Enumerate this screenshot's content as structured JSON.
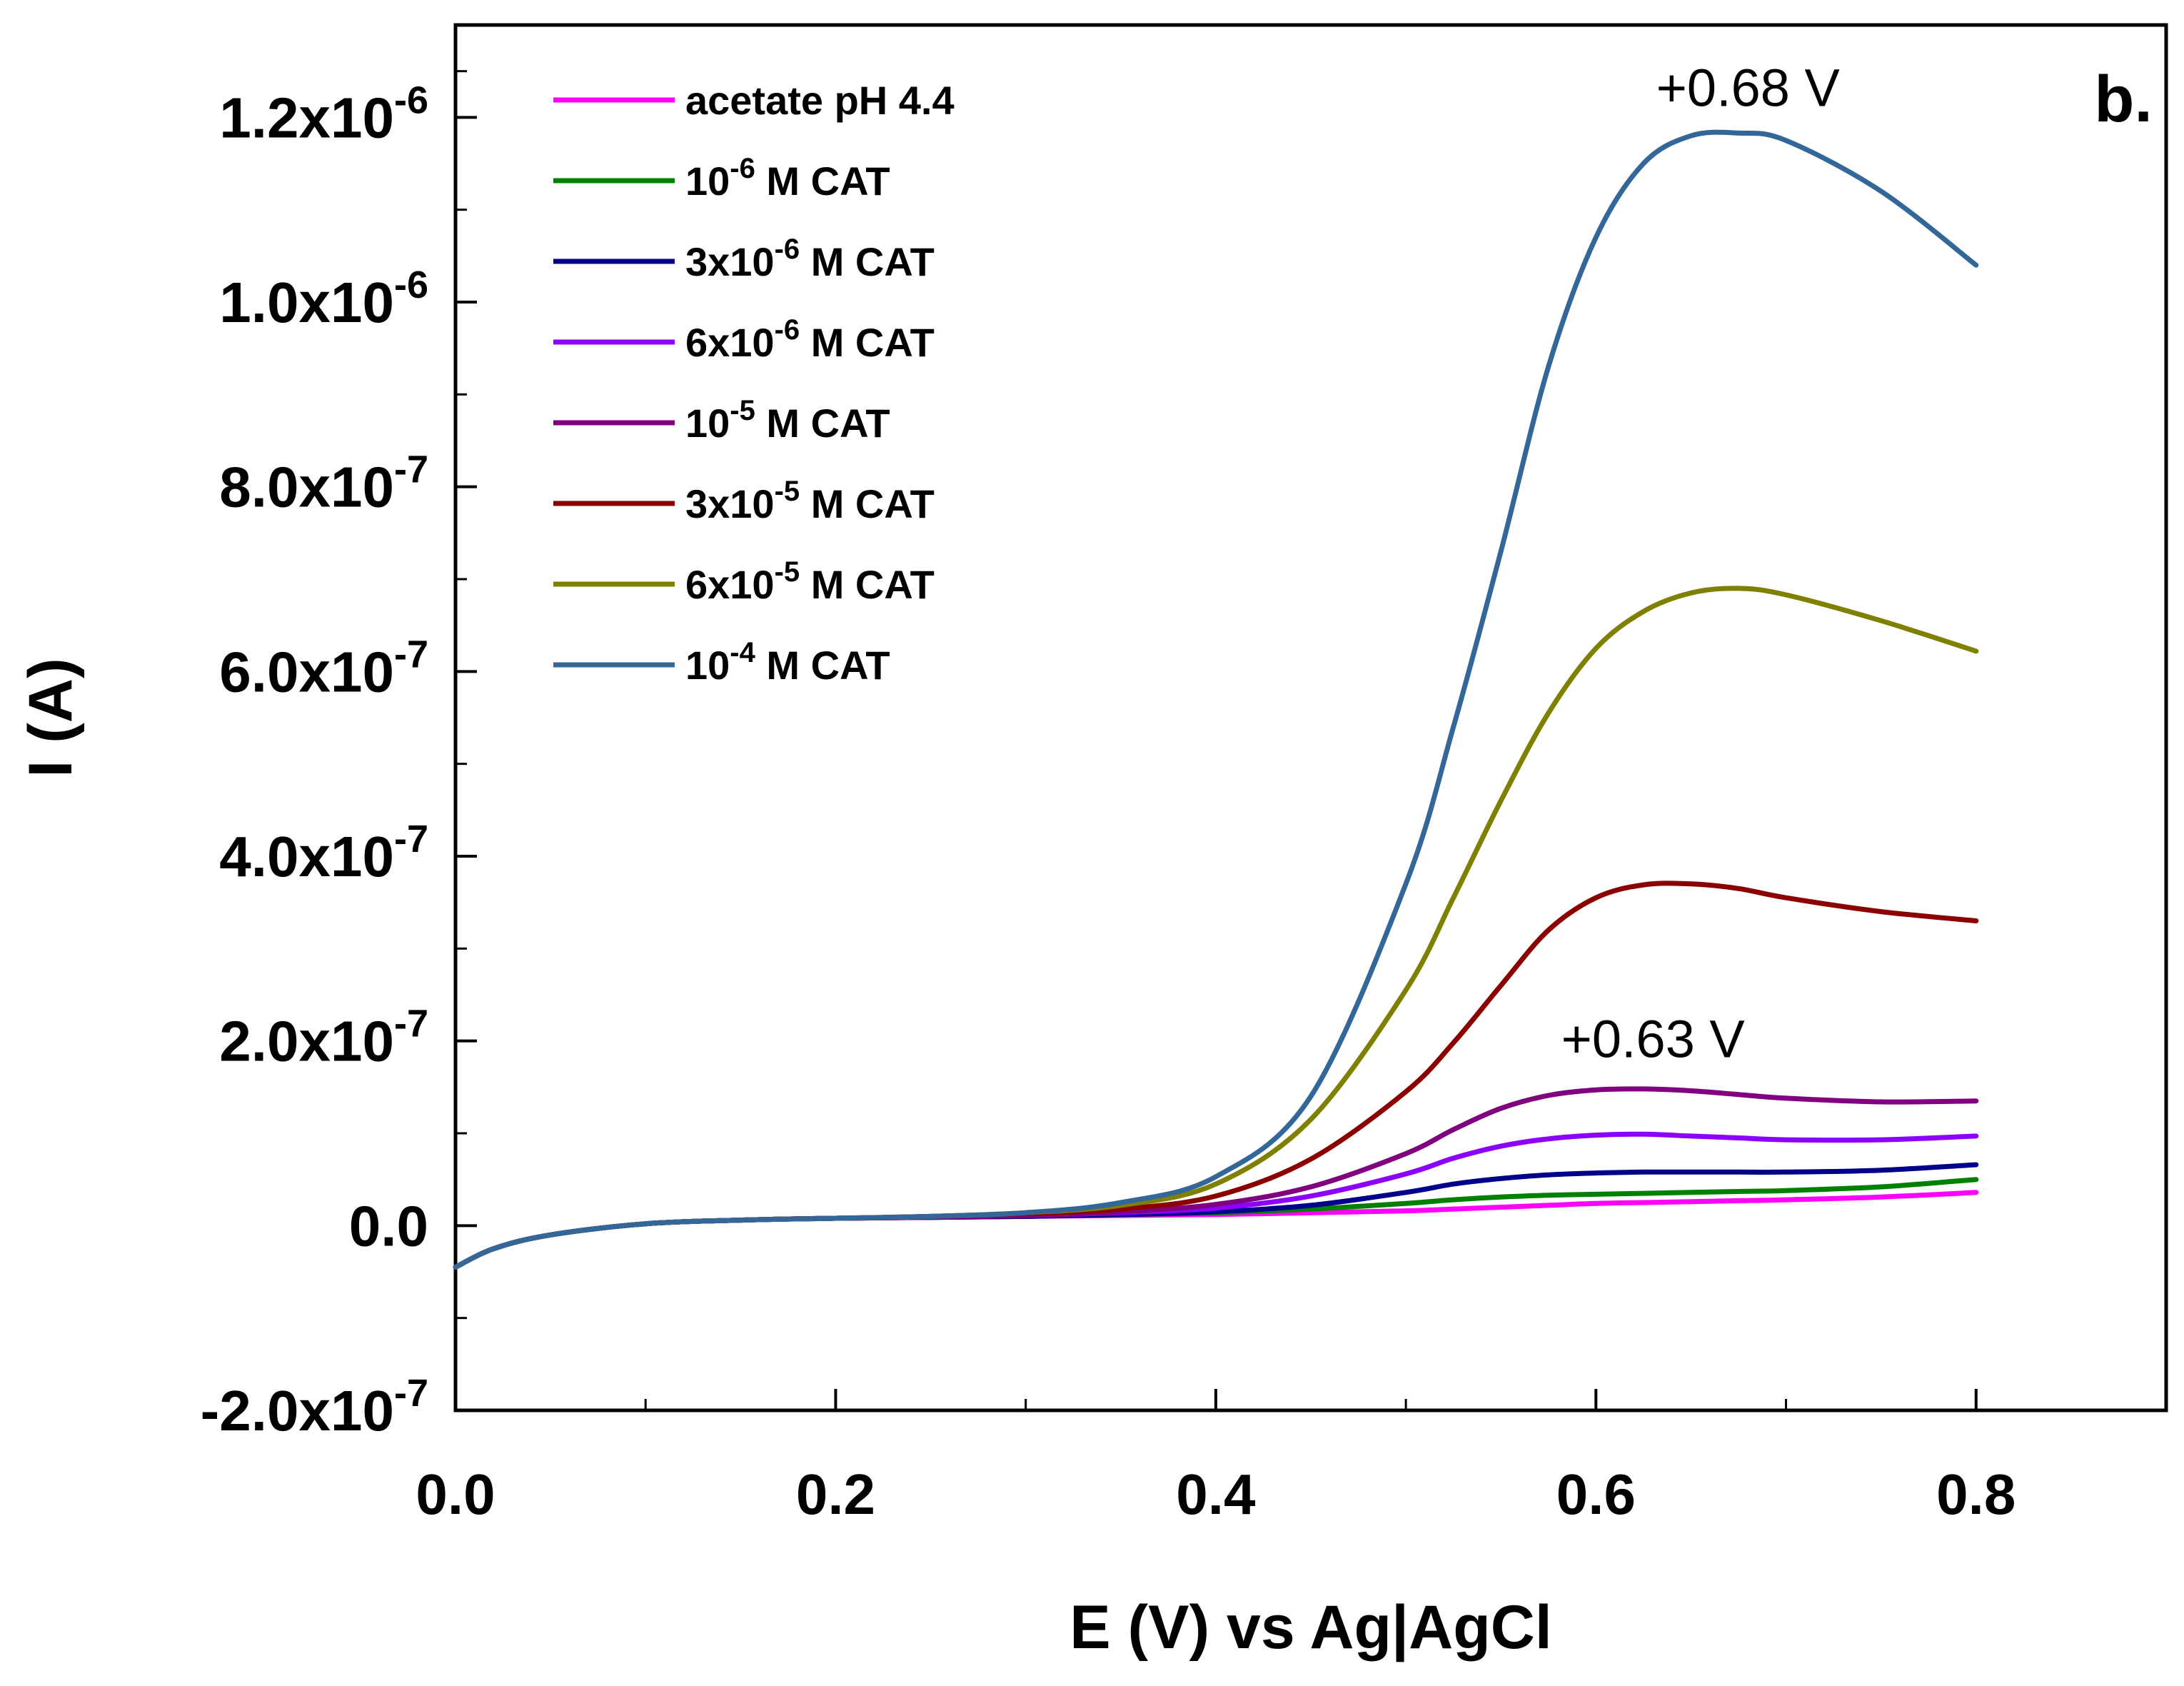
{
  "chart_data": {
    "type": "line",
    "panel_label": "b.",
    "xlabel": "E (V) vs Ag|AgCl",
    "ylabel": "I (A)",
    "xlim": [
      0.0,
      0.9
    ],
    "ylim": [
      -2e-07,
      1.3e-06
    ],
    "x_ticks": [
      {
        "value": 0.0,
        "label": "0.0"
      },
      {
        "value": 0.2,
        "label": "0.2"
      },
      {
        "value": 0.4,
        "label": "0.4"
      },
      {
        "value": 0.6,
        "label": "0.6"
      },
      {
        "value": 0.8,
        "label": "0.8"
      }
    ],
    "y_ticks": [
      {
        "value": -2e-07,
        "mantissa": "-2.0x10",
        "exp": "-7"
      },
      {
        "value": 0.0,
        "mantissa": "0.0",
        "exp": ""
      },
      {
        "value": 2e-07,
        "mantissa": "2.0x10",
        "exp": "-7"
      },
      {
        "value": 4e-07,
        "mantissa": "4.0x10",
        "exp": "-7"
      },
      {
        "value": 6e-07,
        "mantissa": "6.0x10",
        "exp": "-7"
      },
      {
        "value": 8e-07,
        "mantissa": "8.0x10",
        "exp": "-7"
      },
      {
        "value": 1e-06,
        "mantissa": "1.0x10",
        "exp": "-6"
      },
      {
        "value": 1.2e-06,
        "mantissa": "1.2x10",
        "exp": "-6"
      }
    ],
    "x": [
      0.0,
      0.02,
      0.05,
      0.1,
      0.15,
      0.2,
      0.25,
      0.3,
      0.35,
      0.4,
      0.45,
      0.5,
      0.525,
      0.55,
      0.575,
      0.6,
      0.625,
      0.65,
      0.675,
      0.7,
      0.75,
      0.8
    ],
    "series": [
      {
        "name": "acetate pH 4.4",
        "legend_prefix": "acetate pH 4.4",
        "legend_exp": "",
        "legend_suffix": "",
        "color": "#ff00ff",
        "values": [
          -4.5e-08,
          -2.5e-08,
          -1e-08,
          2e-09,
          6e-09,
          8e-09,
          9e-09,
          1e-08,
          1.1e-08,
          1.2e-08,
          1.4e-08,
          1.6e-08,
          1.8e-08,
          2e-08,
          2.2e-08,
          2.4e-08,
          2.5e-08,
          2.6e-08,
          2.7e-08,
          2.8e-08,
          3.1e-08,
          3.6e-08
        ]
      },
      {
        "name": "10-6 M CAT",
        "legend_prefix": "10",
        "legend_exp": "-6",
        "legend_suffix": " M CAT",
        "color": "#008000",
        "values": [
          -4.5e-08,
          -2.5e-08,
          -1e-08,
          2e-09,
          6e-09,
          8e-09,
          9e-09,
          1e-08,
          1.2e-08,
          1.4e-08,
          1.8e-08,
          2.4e-08,
          2.8e-08,
          3.1e-08,
          3.3e-08,
          3.4e-08,
          3.5e-08,
          3.6e-08,
          3.7e-08,
          3.8e-08,
          4.2e-08,
          5e-08
        ]
      },
      {
        "name": "3x10-6 M CAT",
        "legend_prefix": "3x10",
        "legend_exp": "-6",
        "legend_suffix": " M CAT",
        "color": "#00008b",
        "values": [
          -4.5e-08,
          -2.5e-08,
          -1e-08,
          2e-09,
          6e-09,
          8e-09,
          9e-09,
          1e-08,
          1.2e-08,
          1.5e-08,
          2.2e-08,
          3.6e-08,
          4.5e-08,
          5.1e-08,
          5.5e-08,
          5.7e-08,
          5.8e-08,
          5.8e-08,
          5.8e-08,
          5.8e-08,
          6e-08,
          6.6e-08
        ]
      },
      {
        "name": "6x10-6 M CAT",
        "legend_prefix": "6x10",
        "legend_exp": "-6",
        "legend_suffix": " M CAT",
        "color": "#8b00ff",
        "values": [
          -4.5e-08,
          -2.5e-08,
          -1e-08,
          2e-09,
          6e-09,
          8e-09,
          9e-09,
          1.1e-08,
          1.4e-08,
          1.9e-08,
          3.2e-08,
          5.6e-08,
          7.3e-08,
          8.6e-08,
          9.4e-08,
          9.8e-08,
          9.9e-08,
          9.7e-08,
          9.5e-08,
          9.3e-08,
          9.3e-08,
          9.7e-08
        ]
      },
      {
        "name": "10-5 M CAT",
        "legend_prefix": "10",
        "legend_exp": "-5",
        "legend_suffix": " M CAT",
        "color": "#800080",
        "values": [
          -4.5e-08,
          -2.5e-08,
          -1e-08,
          2e-09,
          6e-09,
          8e-09,
          9e-09,
          1.1e-08,
          1.5e-08,
          2.3e-08,
          4.2e-08,
          7.8e-08,
          1.04e-07,
          1.27e-07,
          1.41e-07,
          1.47e-07,
          1.48e-07,
          1.46e-07,
          1.42e-07,
          1.38e-07,
          1.34e-07,
          1.35e-07
        ]
      },
      {
        "name": "3x10-5 M CAT",
        "legend_prefix": "3x10",
        "legend_exp": "-5",
        "legend_suffix": " M CAT",
        "color": "#8b0000",
        "values": [
          -4.5e-08,
          -2.5e-08,
          -1e-08,
          2e-09,
          6e-09,
          8e-09,
          1e-08,
          1.3e-08,
          1.8e-08,
          3.2e-08,
          7.2e-08,
          1.45e-07,
          1.98e-07,
          2.6e-07,
          3.2e-07,
          3.55e-07,
          3.69e-07,
          3.7e-07,
          3.65e-07,
          3.55e-07,
          3.4e-07,
          3.3e-07
        ]
      },
      {
        "name": "6x10-5 M CAT",
        "legend_prefix": "6x10",
        "legend_exp": "-5",
        "legend_suffix": " M CAT",
        "color": "#808000",
        "values": [
          -4.5e-08,
          -2.5e-08,
          -1e-08,
          2e-09,
          6e-09,
          8e-09,
          1e-08,
          1.4e-08,
          2.2e-08,
          4.5e-08,
          1.15e-07,
          2.55e-07,
          3.55e-07,
          4.6e-07,
          5.55e-07,
          6.25e-07,
          6.65e-07,
          6.85e-07,
          6.9e-07,
          6.83e-07,
          6.55e-07,
          6.22e-07
        ]
      },
      {
        "name": "10-4 M CAT",
        "legend_prefix": "10",
        "legend_exp": "-4",
        "legend_suffix": " M CAT",
        "color": "#336699",
        "values": [
          -4.5e-08,
          -2.5e-08,
          -1e-08,
          2e-09,
          6e-09,
          8e-09,
          1e-08,
          1.4e-08,
          2.5e-08,
          5.3e-08,
          1.4e-07,
          3.7e-07,
          5.4e-07,
          7.3e-07,
          9.3e-07,
          1.07e-06,
          1.15e-06,
          1.18e-06,
          1.183e-06,
          1.175e-06,
          1.12e-06,
          1.04e-06
        ]
      }
    ],
    "annotations": [
      {
        "text": "+0.68 V",
        "x": 0.68,
        "y": 1.22e-06
      },
      {
        "text": "+0.63 V",
        "x": 0.63,
        "y": 1.9e-07
      }
    ]
  }
}
